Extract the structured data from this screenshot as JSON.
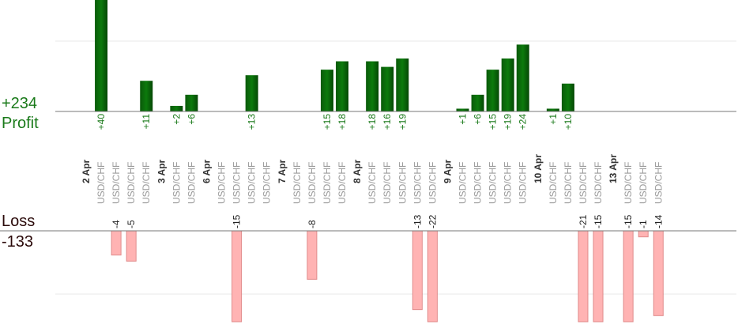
{
  "colors": {
    "profit": "#006400",
    "profit_text": "#1a7a1a",
    "loss": "#ffb3b3",
    "loss_stroke": "#e08a8a",
    "loss_text": "#2b0a0a",
    "axis": "#777777",
    "grid": "#e8e8e8",
    "label_gray": "#9a9a9a",
    "date_text": "#333333"
  },
  "labels": {
    "profit_total": "+234",
    "profit_word": "Profit",
    "loss_word": "Loss",
    "loss_total": "-133"
  },
  "chart_data": {
    "type": "bar",
    "grid": true,
    "categories": [
      "2 Apr",
      "USD/CHF",
      "USD/CHF",
      "USD/CHF",
      "USD/CHF",
      "3 Apr",
      "USD/CHF",
      "USD/CHF",
      "6 Apr",
      "USD/CHF",
      "USD/CHF",
      "USD/CHF",
      "USD/CHF",
      "7 Apr",
      "USD/CHF",
      "USD/CHF",
      "USD/CHF",
      "USD/CHF",
      "8 Apr",
      "USD/CHF",
      "USD/CHF",
      "USD/CHF",
      "USD/CHF",
      "USD/CHF",
      "9 Apr",
      "USD/CHF",
      "USD/CHF",
      "USD/CHF",
      "USD/CHF",
      "USD/CHF",
      "10 Apr",
      "USD/CHF",
      "USD/CHF",
      "USD/CHF",
      "USD/CHF",
      "13 Apr",
      "USD/CHF",
      "USD/CHF",
      "USD/CHF"
    ],
    "series": [
      {
        "name": "Profit",
        "values": [
          null,
          40,
          null,
          null,
          11,
          null,
          2,
          6,
          null,
          null,
          null,
          13,
          null,
          null,
          null,
          null,
          15,
          18,
          null,
          18,
          16,
          19,
          null,
          null,
          null,
          1,
          6,
          15,
          19,
          24,
          null,
          1,
          10,
          null,
          null,
          null,
          null,
          null,
          null
        ]
      },
      {
        "name": "Loss",
        "values": [
          null,
          null,
          -4,
          -5,
          null,
          null,
          null,
          null,
          null,
          null,
          -15,
          null,
          null,
          null,
          null,
          -8,
          null,
          null,
          null,
          null,
          null,
          null,
          -13,
          -22,
          null,
          null,
          null,
          null,
          null,
          null,
          null,
          null,
          null,
          -21,
          -15,
          null,
          -15,
          -1,
          -14
        ]
      }
    ],
    "profit_scale_max": 40,
    "loss_scale_max": 15
  }
}
